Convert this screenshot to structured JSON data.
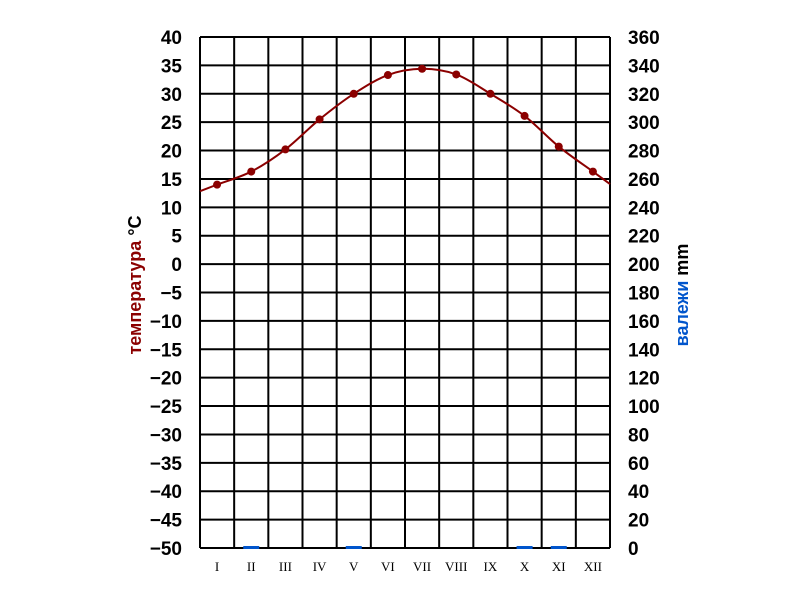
{
  "chart_data": {
    "type": "line",
    "title": "",
    "categories": [
      "I",
      "II",
      "III",
      "IV",
      "V",
      "VI",
      "VII",
      "VIII",
      "IX",
      "X",
      "XI",
      "XII"
    ],
    "series": [
      {
        "name": "температура",
        "axis": "left",
        "kind": "line",
        "color": "#8b0000",
        "values": [
          14.0,
          16.3,
          20.2,
          25.5,
          30.0,
          33.3,
          34.4,
          33.4,
          30.0,
          26.1,
          20.7,
          16.3
        ]
      },
      {
        "name": "валежи",
        "axis": "right",
        "kind": "bar",
        "color": "#0055cc",
        "values": [
          0,
          0.5,
          0,
          0,
          0.5,
          0,
          0,
          0,
          0,
          0.5,
          0.5,
          0
        ]
      }
    ],
    "y_left": {
      "label": "температура",
      "unit": "°C",
      "range": [
        -50,
        40
      ],
      "step": 5,
      "color": "#8b0000"
    },
    "y_right": {
      "label": "валежи",
      "unit": "mm",
      "range": [
        0,
        360
      ],
      "ticks": [
        0,
        20,
        40,
        60,
        80,
        100,
        120,
        140,
        160,
        180,
        200,
        220,
        240,
        260,
        280,
        300,
        320,
        340,
        360
      ],
      "color": "#0055cc"
    },
    "grid": true,
    "legend": "none"
  }
}
